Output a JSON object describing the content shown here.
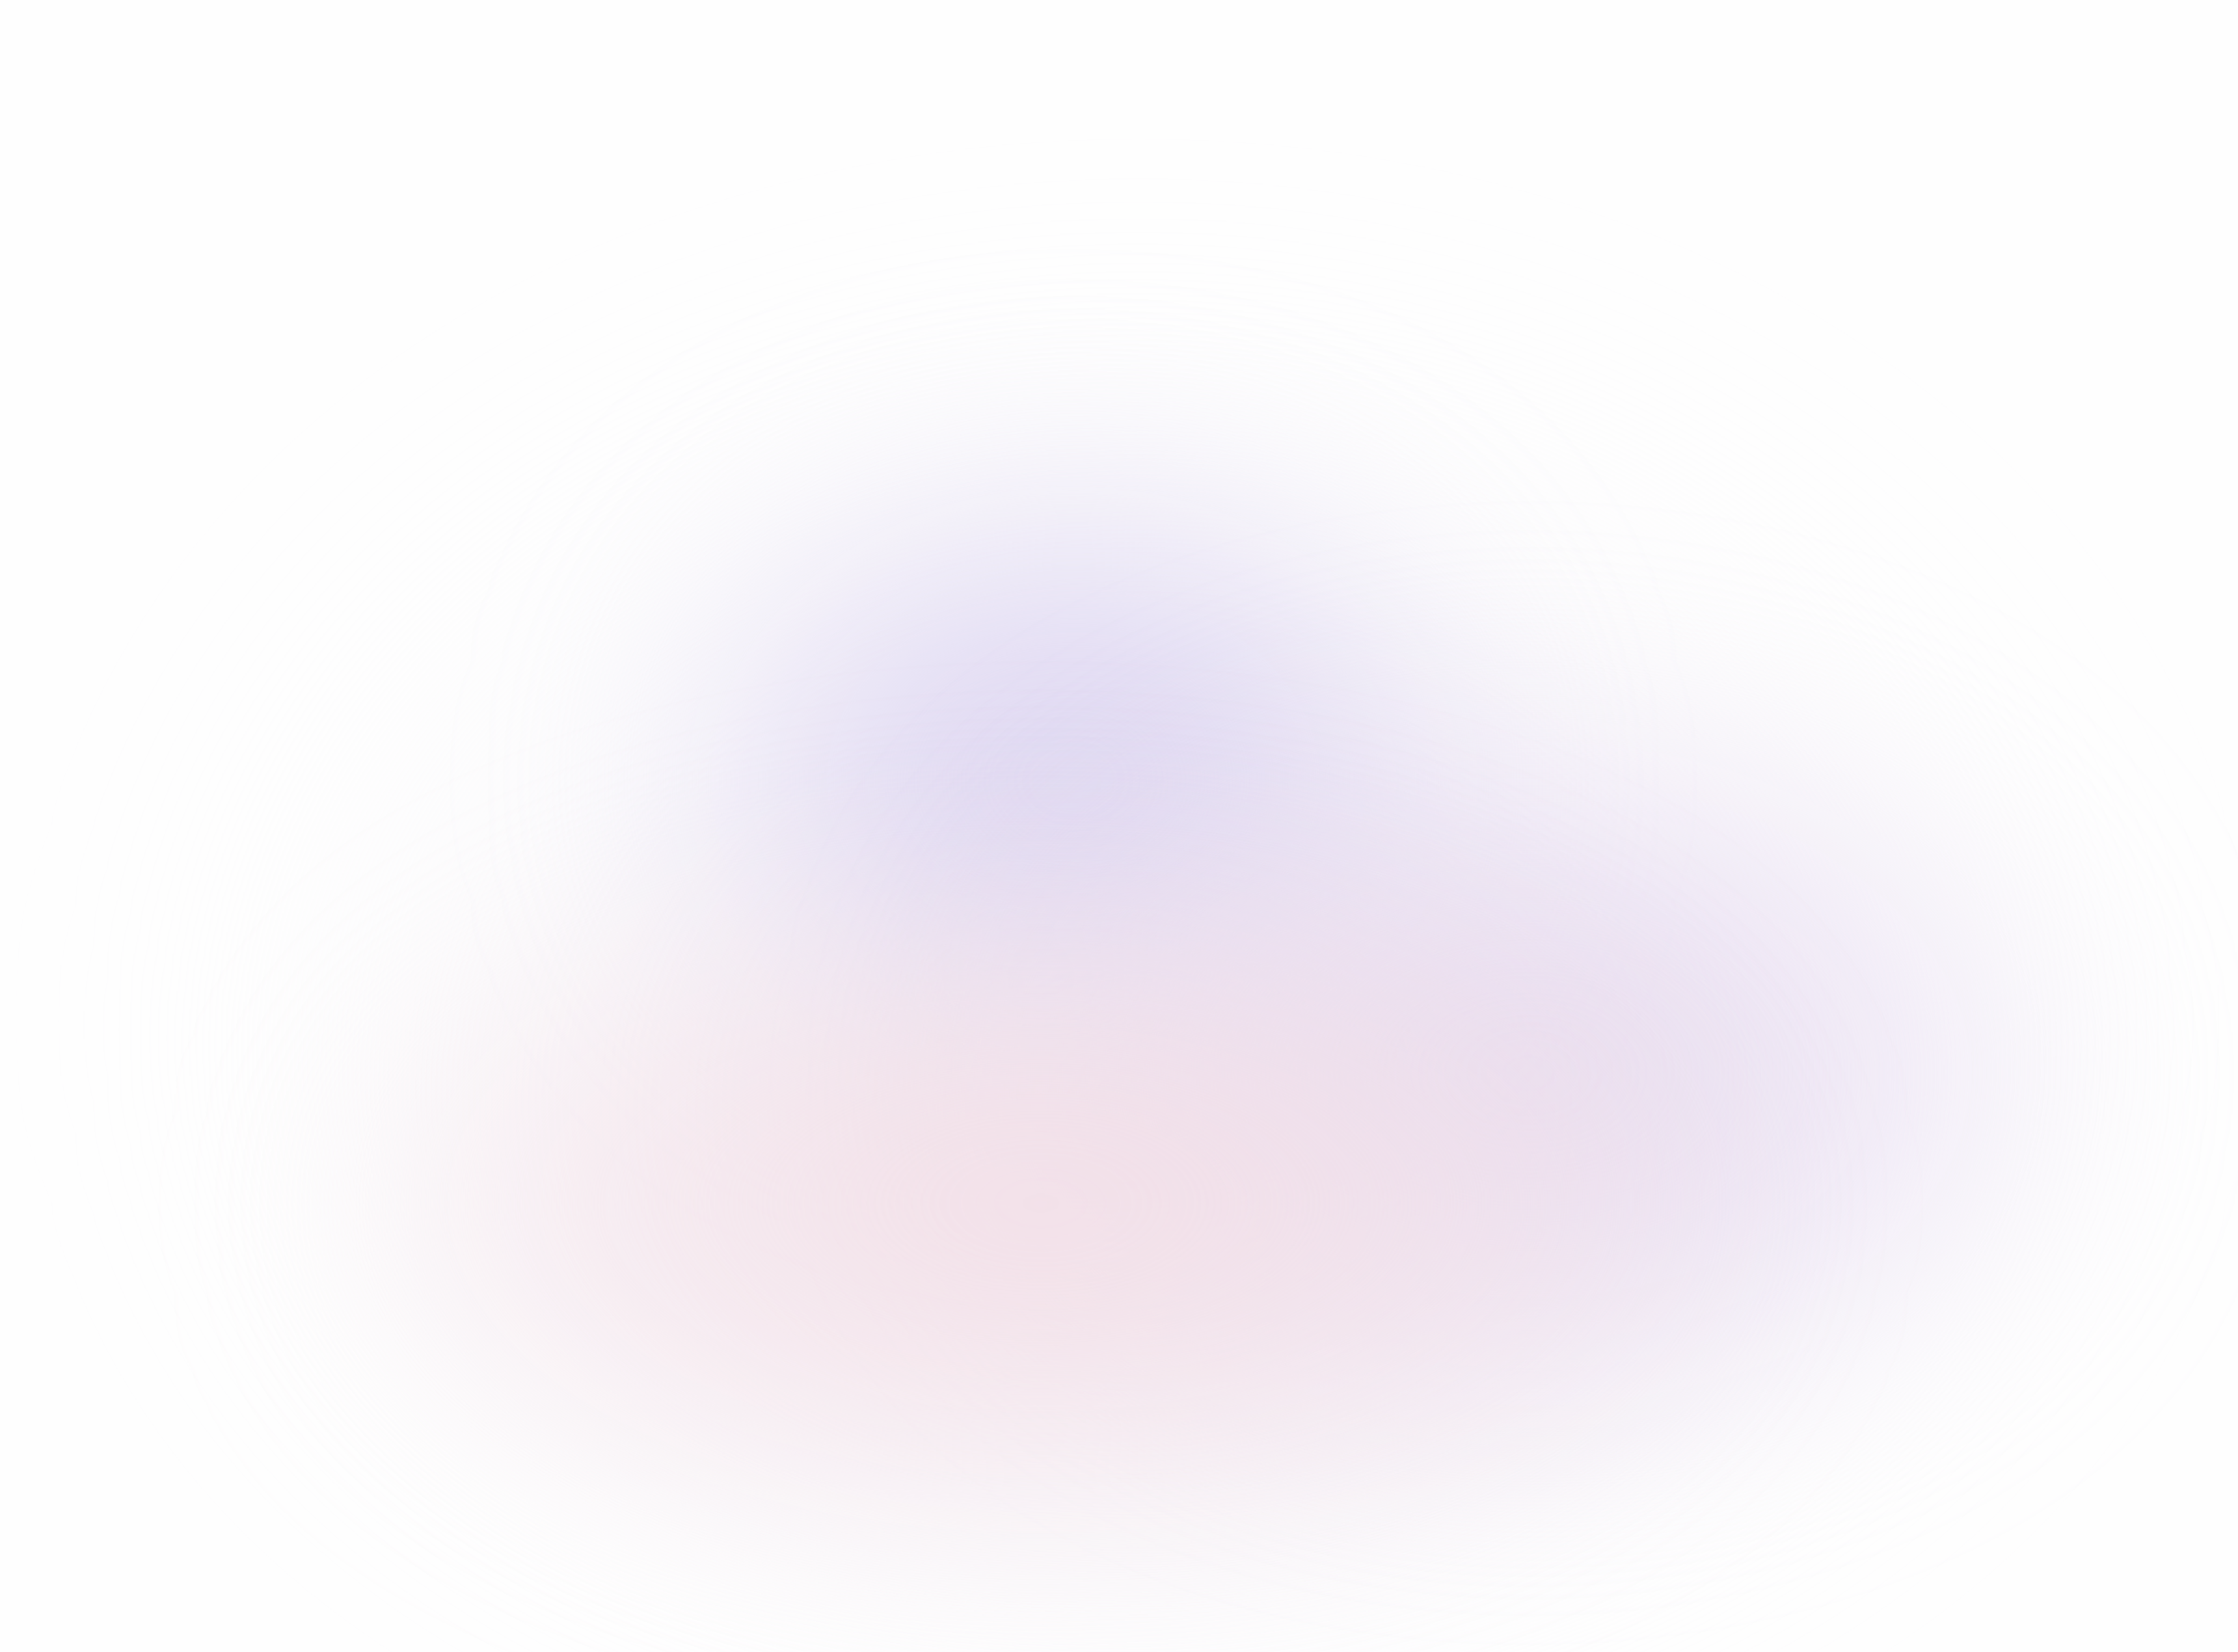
{
  "background": {
    "base_color": "#fefefe",
    "gradient_colors": [
      "#d9d2f0",
      "#e2d4ec",
      "#f2dce4"
    ]
  }
}
